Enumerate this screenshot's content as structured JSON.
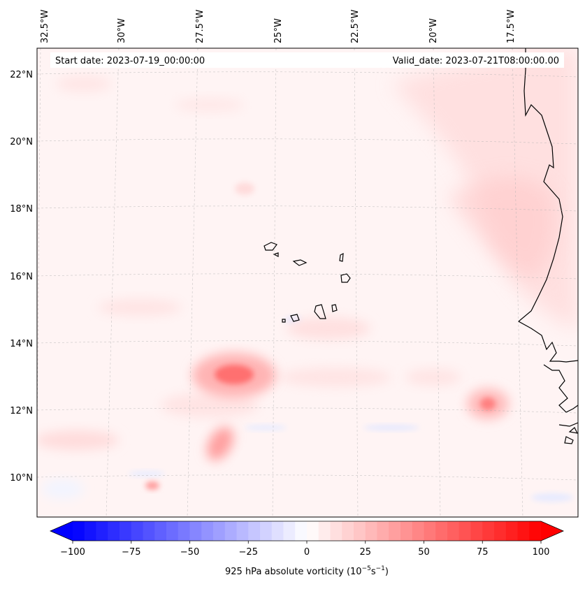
{
  "header": {
    "start_date": "Start date: 2023-07-19_00:00:00",
    "valid_date": "Valid_date: 2023-07-21T08:00:00.00"
  },
  "longitude_labels": [
    "32.5°W",
    "30°W",
    "27.5°W",
    "25°W",
    "22.5°W",
    "20°W",
    "17.5°W"
  ],
  "latitude_labels": [
    "22°N",
    "20°N",
    "18°N",
    "16°N",
    "14°N",
    "12°N",
    "10°N"
  ],
  "colorbar": {
    "label_prefix": "925 hPa absolute vorticity (10",
    "label_exp1": "−5",
    "label_mid": "s",
    "label_exp2": "−1",
    "label_suffix": ")",
    "ticks": [
      "−100",
      "−75",
      "−50",
      "−25",
      "0",
      "25",
      "50",
      "75",
      "100"
    ],
    "min": -100,
    "max": 100,
    "levels": 41,
    "low_color": "#0000ff",
    "mid_color": "#ffffff",
    "high_color": "#ff0000"
  },
  "chart_data": {
    "type": "heatmap",
    "variable": "925 hPa absolute vorticity",
    "units": "1e-5 s^-1",
    "extent": {
      "lon": [
        -33,
        -15.5
      ],
      "lat": [
        9,
        22.8
      ]
    },
    "features": [
      {
        "name": "vortex-center-west",
        "lon": -26.2,
        "lat": 13.1,
        "value": 55
      },
      {
        "name": "vortex-center-east",
        "lon": -18.0,
        "lat": 12.2,
        "value": 45
      },
      {
        "name": "vortex-southwest",
        "lon": -27.3,
        "lat": 11.0,
        "value": 30
      },
      {
        "name": "vortex-far-southwest",
        "lon": -29.8,
        "lat": 9.8,
        "value": 30
      },
      {
        "name": "coastal-shear-band",
        "lon": -18.5,
        "lat": 17.0,
        "value": 18
      }
    ]
  }
}
